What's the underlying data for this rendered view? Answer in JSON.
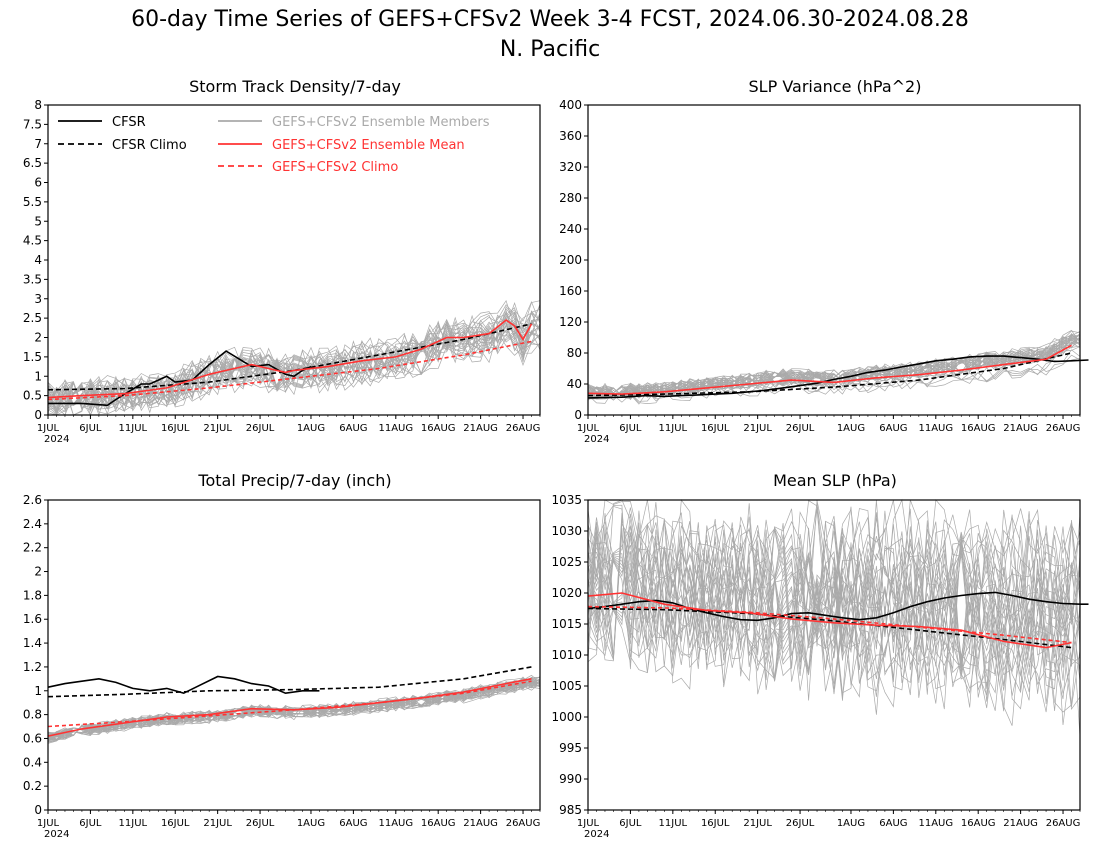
{
  "header": {
    "title": "60-day Time Series of GEFS+CFSv2 Week 3-4 FCST, 2024.06.30-2024.08.28",
    "region": "N. Pacific"
  },
  "colors": {
    "cfsr": "#000000",
    "members": "#aaaaaa",
    "mean": "#ff3333"
  },
  "x_ticks": [
    "1JUL",
    "6JUL",
    "11JUL",
    "16JUL",
    "21JUL",
    "26JUL",
    "1AUG",
    "6AUG",
    "11AUG",
    "16AUG",
    "21AUG",
    "26AUG"
  ],
  "x_year": "2024",
  "legend": [
    {
      "label": "CFSR",
      "style": "solid",
      "color": "#000000"
    },
    {
      "label": "CFSR Climo",
      "style": "dashed",
      "color": "#000000"
    },
    {
      "label": "GEFS+CFSv2 Ensemble Members",
      "style": "solid",
      "color": "#aaaaaa"
    },
    {
      "label": "GEFS+CFSv2 Ensemble Mean",
      "style": "solid",
      "color": "#ff3333"
    },
    {
      "label": "GEFS+CFSv2 Climo",
      "style": "dashed",
      "color": "#ff3333"
    }
  ],
  "chart_data": [
    {
      "type": "line",
      "title": "Storm Track Density/7-day",
      "ylim": [
        0,
        8
      ],
      "yticks": [
        "0",
        "0.5",
        "1",
        "1.5",
        "2",
        "2.5",
        "3",
        "3.5",
        "4",
        "4.5",
        "5",
        "5.5",
        "6",
        "6.5",
        "7",
        "7.5",
        "8"
      ],
      "x_range": [
        "2024-07-01",
        "2024-08-28"
      ],
      "series": [
        {
          "name": "CFSR",
          "x": [
            1,
            5,
            8,
            9,
            12,
            13,
            15,
            16,
            18,
            20,
            22,
            25,
            27,
            29,
            30,
            31,
            32
          ],
          "values": [
            0.3,
            0.3,
            0.25,
            0.4,
            0.8,
            0.8,
            1.0,
            0.85,
            0.9,
            1.3,
            1.65,
            1.25,
            1.3,
            1.05,
            1.0,
            1.15,
            1.25
          ]
        },
        {
          "name": "CFSR Climo",
          "x": [
            1,
            10,
            20,
            30,
            40,
            50,
            58
          ],
          "values": [
            0.65,
            0.68,
            0.85,
            1.15,
            1.55,
            1.95,
            2.35
          ]
        },
        {
          "name": "GEFS+CFSv2 Ensemble Mean",
          "x": [
            1,
            5,
            10,
            15,
            20,
            22,
            25,
            29,
            30,
            34,
            38,
            42,
            45,
            48,
            50,
            53,
            55,
            56,
            57,
            58
          ],
          "values": [
            0.45,
            0.5,
            0.55,
            0.7,
            1.05,
            1.15,
            1.3,
            1.1,
            1.15,
            1.25,
            1.4,
            1.5,
            1.7,
            2.0,
            2.0,
            2.1,
            2.45,
            2.3,
            1.95,
            2.35
          ]
        },
        {
          "name": "GEFS+CFSv2 Climo",
          "x": [
            1,
            10,
            20,
            30,
            40,
            50,
            58
          ],
          "values": [
            0.4,
            0.5,
            0.7,
            0.95,
            1.2,
            1.55,
            1.9
          ]
        }
      ],
      "members": {
        "count": 30,
        "spread": 0.75,
        "amplitude": 0.45
      }
    },
    {
      "type": "line",
      "title": "SLP Variance (hPa^2)",
      "ylim": [
        0,
        400
      ],
      "yticks": [
        "0",
        "40",
        "80",
        "120",
        "160",
        "200",
        "240",
        "280",
        "320",
        "360",
        "400"
      ],
      "x_range": [
        "2024-07-01",
        "2024-08-28"
      ],
      "series": [
        {
          "name": "CFSR",
          "x": [
            1,
            5,
            8,
            10,
            12,
            14,
            16,
            18,
            20,
            22,
            24,
            26,
            28,
            30,
            32,
            34,
            36,
            38,
            40,
            42,
            44,
            46,
            48,
            50,
            52,
            54,
            56,
            58,
            60
          ],
          "values": [
            22,
            23,
            25,
            24,
            25,
            26,
            27,
            28,
            30,
            32,
            35,
            38,
            41,
            46,
            50,
            55,
            58,
            62,
            66,
            70,
            72,
            75,
            76,
            76,
            74,
            72,
            69,
            70,
            71
          ]
        },
        {
          "name": "CFSR Climo",
          "x": [
            1,
            10,
            20,
            30,
            40,
            50,
            58
          ],
          "values": [
            25,
            27,
            30,
            36,
            45,
            60,
            80
          ]
        },
        {
          "name": "GEFS+CFSv2 Ensemble Mean",
          "x": [
            1,
            5,
            10,
            15,
            20,
            25,
            30,
            35,
            40,
            45,
            50,
            55,
            58
          ],
          "values": [
            28,
            27,
            30,
            35,
            40,
            45,
            42,
            48,
            52,
            58,
            65,
            72,
            90
          ]
        }
      ],
      "members": {
        "count": 30,
        "spread": 0.25,
        "amplitude": 0.2
      }
    },
    {
      "type": "line",
      "title": "Total Precip/7-day (inch)",
      "ylim": [
        0,
        2.6
      ],
      "yticks": [
        "0",
        "0.2",
        "0.4",
        "0.6",
        "0.8",
        "1",
        "1.2",
        "1.4",
        "1.6",
        "1.8",
        "2",
        "2.2",
        "2.4",
        "2.6"
      ],
      "x_range": [
        "2024-07-01",
        "2024-08-28"
      ],
      "series": [
        {
          "name": "CFSR",
          "x": [
            1,
            3,
            5,
            7,
            9,
            11,
            13,
            15,
            17,
            19,
            21,
            23,
            25,
            27,
            29,
            31,
            33
          ],
          "values": [
            1.03,
            1.06,
            1.08,
            1.1,
            1.07,
            1.02,
            1.0,
            1.02,
            0.98,
            1.05,
            1.12,
            1.1,
            1.06,
            1.04,
            0.98,
            1.0,
            1.0
          ]
        },
        {
          "name": "CFSR Climo",
          "x": [
            1,
            10,
            20,
            30,
            40,
            50,
            58
          ],
          "values": [
            0.95,
            0.97,
            1.0,
            1.01,
            1.03,
            1.1,
            1.2
          ]
        },
        {
          "name": "GEFS+CFSv2 Ensemble Mean",
          "x": [
            1,
            5,
            10,
            15,
            20,
            25,
            30,
            35,
            40,
            45,
            50,
            55,
            58
          ],
          "values": [
            0.62,
            0.68,
            0.73,
            0.78,
            0.8,
            0.85,
            0.84,
            0.86,
            0.9,
            0.94,
            0.99,
            1.06,
            1.1
          ]
        },
        {
          "name": "GEFS+CFSv2 Climo",
          "x": [
            1,
            10,
            20,
            30,
            40,
            50,
            58
          ],
          "values": [
            0.7,
            0.74,
            0.79,
            0.84,
            0.9,
            0.98,
            1.08
          ]
        }
      ],
      "members": {
        "count": 30,
        "spread": 0.18,
        "amplitude": 0.15
      }
    },
    {
      "type": "line",
      "title": "Mean SLP (hPa)",
      "ylim": [
        985,
        1035
      ],
      "yticks": [
        "985",
        "990",
        "995",
        "1000",
        "1005",
        "1010",
        "1015",
        "1020",
        "1025",
        "1030",
        "1035"
      ],
      "x_range": [
        "2024-07-01",
        "2024-08-28"
      ],
      "series": [
        {
          "name": "CFSR",
          "x": [
            1,
            3,
            5,
            7,
            9,
            11,
            13,
            15,
            17,
            19,
            21,
            23,
            25,
            27,
            29,
            31,
            33,
            35,
            37,
            39,
            41,
            43,
            45,
            47,
            49,
            51,
            53,
            55,
            57,
            59,
            60
          ],
          "values": [
            1017.5,
            1017.8,
            1018.2,
            1018.6,
            1018.8,
            1018.4,
            1017.5,
            1016.8,
            1016.2,
            1015.7,
            1015.6,
            1016.0,
            1016.7,
            1016.8,
            1016.4,
            1016.0,
            1015.7,
            1016.0,
            1016.8,
            1017.8,
            1018.6,
            1019.2,
            1019.6,
            1019.9,
            1020.1,
            1019.6,
            1019.0,
            1018.6,
            1018.3,
            1018.2,
            1018.2
          ]
        },
        {
          "name": "CFSR Climo",
          "x": [
            1,
            10,
            20,
            30,
            40,
            50,
            58
          ],
          "values": [
            1017.5,
            1017.3,
            1016.7,
            1015.5,
            1014.0,
            1012.5,
            1011.2
          ]
        },
        {
          "name": "GEFS+CFSv2 Ensemble Mean",
          "x": [
            1,
            5,
            10,
            15,
            20,
            25,
            30,
            35,
            40,
            45,
            50,
            55,
            58
          ],
          "values": [
            1019.5,
            1020.0,
            1018.2,
            1017.2,
            1016.8,
            1015.8,
            1015.2,
            1014.8,
            1014.6,
            1014.0,
            1012.2,
            1011.2,
            1012.0
          ]
        },
        {
          "name": "GEFS+CFSv2 Climo",
          "x": [
            1,
            10,
            20,
            30,
            40,
            50,
            58
          ],
          "values": [
            1017.8,
            1017.6,
            1016.9,
            1015.8,
            1014.5,
            1013.2,
            1012.0
          ]
        }
      ],
      "members": {
        "count": 30,
        "spread": 3.5,
        "amplitude": 2.0
      }
    }
  ]
}
